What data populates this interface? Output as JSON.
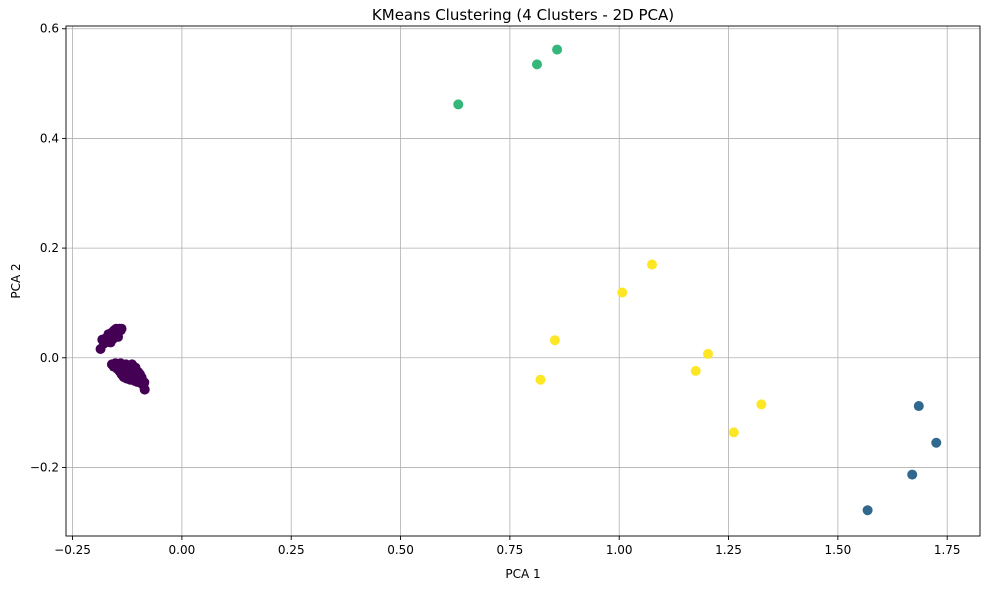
{
  "chart_data": {
    "type": "scatter",
    "title": "KMeans Clustering (4 Clusters - 2D PCA)",
    "xlabel": "PCA 1",
    "ylabel": "PCA 2",
    "xlim": [
      -0.265,
      1.825
    ],
    "ylim": [
      -0.325,
      0.605
    ],
    "x_ticks": [
      -0.25,
      0.0,
      0.25,
      0.5,
      0.75,
      1.0,
      1.25,
      1.5,
      1.75
    ],
    "x_tick_labels": [
      "−0.25",
      "0.00",
      "0.25",
      "0.50",
      "0.75",
      "1.00",
      "1.25",
      "1.50",
      "1.75"
    ],
    "y_ticks": [
      -0.2,
      0.0,
      0.2,
      0.4,
      0.6
    ],
    "y_tick_labels": [
      "−0.2",
      "0.0",
      "0.2",
      "0.4",
      "0.6"
    ],
    "grid": true,
    "legend": "none",
    "series": [
      {
        "color": "#440154",
        "points": [
          [
            -0.186,
            0.016
          ],
          [
            -0.182,
            0.033
          ],
          [
            -0.178,
            0.026
          ],
          [
            -0.175,
            0.035
          ],
          [
            -0.172,
            0.03
          ],
          [
            -0.168,
            0.043
          ],
          [
            -0.165,
            0.037
          ],
          [
            -0.163,
            0.028
          ],
          [
            -0.16,
            0.046
          ],
          [
            -0.158,
            0.034
          ],
          [
            -0.155,
            0.05
          ],
          [
            -0.153,
            0.04
          ],
          [
            -0.15,
            0.053
          ],
          [
            -0.148,
            0.045
          ],
          [
            -0.146,
            0.038
          ],
          [
            -0.143,
            0.053
          ],
          [
            -0.14,
            0.05
          ],
          [
            -0.138,
            0.053
          ],
          [
            -0.16,
            -0.012
          ],
          [
            -0.156,
            -0.016
          ],
          [
            -0.152,
            -0.01
          ],
          [
            -0.148,
            -0.02
          ],
          [
            -0.145,
            -0.014
          ],
          [
            -0.142,
            -0.025
          ],
          [
            -0.14,
            -0.01
          ],
          [
            -0.138,
            -0.03
          ],
          [
            -0.135,
            -0.018
          ],
          [
            -0.133,
            -0.035
          ],
          [
            -0.13,
            -0.024
          ],
          [
            -0.128,
            -0.012
          ],
          [
            -0.126,
            -0.038
          ],
          [
            -0.124,
            -0.028
          ],
          [
            -0.122,
            -0.015
          ],
          [
            -0.12,
            -0.032
          ],
          [
            -0.118,
            -0.04
          ],
          [
            -0.116,
            -0.022
          ],
          [
            -0.114,
            -0.012
          ],
          [
            -0.112,
            -0.036
          ],
          [
            -0.11,
            -0.028
          ],
          [
            -0.108,
            -0.042
          ],
          [
            -0.106,
            -0.018
          ],
          [
            -0.104,
            -0.034
          ],
          [
            -0.102,
            -0.044
          ],
          [
            -0.1,
            -0.026
          ],
          [
            -0.098,
            -0.038
          ],
          [
            -0.096,
            -0.03
          ],
          [
            -0.094,
            -0.046
          ],
          [
            -0.092,
            -0.036
          ],
          [
            -0.09,
            -0.042
          ],
          [
            -0.088,
            -0.05
          ],
          [
            -0.086,
            -0.045
          ],
          [
            -0.085,
            -0.058
          ]
        ]
      },
      {
        "color": "#31688e",
        "points": [
          [
            1.685,
            -0.088
          ],
          [
            1.725,
            -0.155
          ],
          [
            1.67,
            -0.213
          ],
          [
            1.568,
            -0.278
          ]
        ]
      },
      {
        "color": "#35b779",
        "points": [
          [
            0.632,
            0.462
          ],
          [
            0.812,
            0.535
          ],
          [
            0.858,
            0.562
          ]
        ]
      },
      {
        "color": "#fde725",
        "points": [
          [
            1.075,
            0.17
          ],
          [
            1.007,
            0.119
          ],
          [
            0.853,
            0.032
          ],
          [
            1.203,
            0.007
          ],
          [
            0.82,
            -0.04
          ],
          [
            1.175,
            -0.024
          ],
          [
            1.325,
            -0.085
          ],
          [
            1.262,
            -0.136
          ]
        ]
      }
    ]
  }
}
